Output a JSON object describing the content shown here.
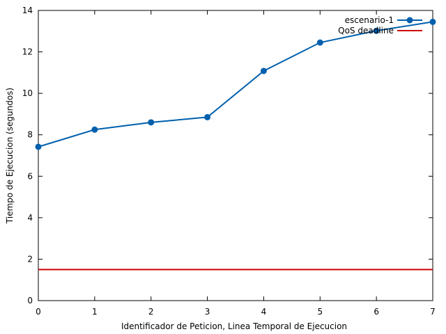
{
  "chart_data": {
    "type": "line",
    "title": "",
    "xlabel": "Identificador de Peticion, Linea Temporal de Ejecucion",
    "ylabel": "Tiempo de Ejecucion (segundos)",
    "xlim": [
      0,
      7
    ],
    "ylim": [
      0,
      14
    ],
    "x_ticks": [
      "0",
      "1",
      "2",
      "3",
      "4",
      "5",
      "6",
      "7"
    ],
    "y_ticks": [
      "0",
      "2",
      "4",
      "6",
      "8",
      "10",
      "12",
      "14"
    ],
    "grid": false,
    "legend_position": "top-right",
    "series": [
      {
        "name": "escenario-1",
        "color": "#0060ad",
        "marker": "circle",
        "x": [
          0,
          1,
          2,
          3,
          4,
          5,
          6,
          7
        ],
        "values": [
          7.42,
          8.25,
          8.6,
          8.85,
          11.08,
          12.45,
          13.02,
          13.45
        ]
      },
      {
        "name": "QoS deadline",
        "color": "#cc0000",
        "marker": "none",
        "x": [
          0,
          7
        ],
        "values": [
          1.5,
          1.5
        ]
      }
    ]
  }
}
